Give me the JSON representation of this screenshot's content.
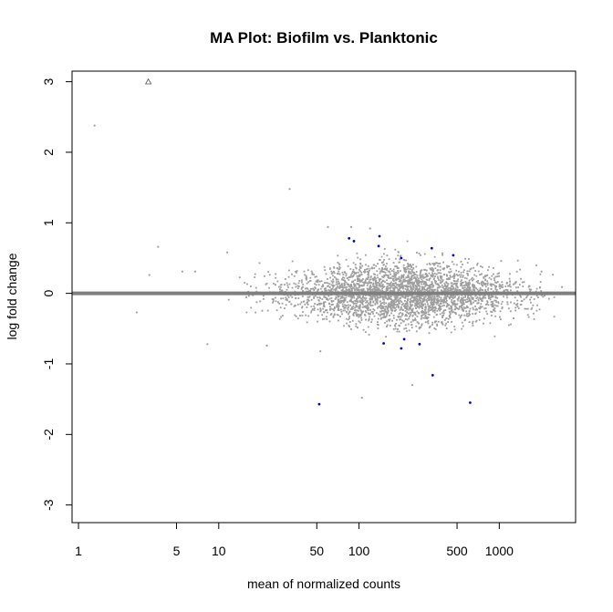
{
  "chart_data": {
    "type": "scatter",
    "title": "MA Plot: Biofilm vs. Planktonic",
    "xlabel": "mean of normalized counts",
    "ylabel": "log fold change",
    "x_scale": "log",
    "xlim": [
      0.9,
      3500
    ],
    "ylim": [
      -3.25,
      3.15
    ],
    "x_ticks": [
      {
        "value": 1,
        "label": "1"
      },
      {
        "value": 5,
        "label": "5"
      },
      {
        "value": 10,
        "label": "10"
      },
      {
        "value": 50,
        "label": "50"
      },
      {
        "value": 100,
        "label": "100"
      },
      {
        "value": 500,
        "label": "500"
      },
      {
        "value": 1000,
        "label": "1000"
      }
    ],
    "y_ticks": [
      {
        "value": -3,
        "label": "-3"
      },
      {
        "value": -2,
        "label": "-2"
      },
      {
        "value": -1,
        "label": "-1"
      },
      {
        "value": 0,
        "label": "0"
      },
      {
        "value": 1,
        "label": "1"
      },
      {
        "value": 2,
        "label": "2"
      },
      {
        "value": 3,
        "label": "3"
      }
    ],
    "reference_line": {
      "y": 0,
      "color": "#7f7f7f"
    },
    "grid": false,
    "colors": {
      "not_significant": "#9e9e9e",
      "significant": "#0000cc",
      "outlier": "#555555"
    },
    "cloud": {
      "description_center_x": 220,
      "n_points": 3200
    },
    "series": [
      {
        "group": "not_significant",
        "points": [
          {
            "x": 1.3,
            "y": 2.38
          },
          {
            "x": 2.6,
            "y": -0.27
          },
          {
            "x": 3.2,
            "y": 0.26
          },
          {
            "x": 3.7,
            "y": 0.66
          },
          {
            "x": 5.5,
            "y": 0.31
          },
          {
            "x": 6.8,
            "y": 0.31
          },
          {
            "x": 8.3,
            "y": -0.72
          },
          {
            "x": 11.5,
            "y": 0.58
          },
          {
            "x": 22,
            "y": -0.74
          },
          {
            "x": 32,
            "y": 1.48
          },
          {
            "x": 53,
            "y": -0.82
          },
          {
            "x": 105,
            "y": -1.48
          },
          {
            "x": 240,
            "y": -1.3
          },
          {
            "x": 2000,
            "y": 0.31
          },
          {
            "x": 2800,
            "y": 0.09
          },
          {
            "x": 60,
            "y": 0.94
          },
          {
            "x": 88,
            "y": 0.94
          },
          {
            "x": 120,
            "y": 0.92
          }
        ]
      },
      {
        "group": "significant",
        "points": [
          {
            "x": 85,
            "y": 0.78
          },
          {
            "x": 92,
            "y": 0.74
          },
          {
            "x": 140,
            "y": 0.81
          },
          {
            "x": 138,
            "y": 0.67
          },
          {
            "x": 200,
            "y": 0.5
          },
          {
            "x": 330,
            "y": 0.64
          },
          {
            "x": 470,
            "y": 0.54
          },
          {
            "x": 150,
            "y": -0.71
          },
          {
            "x": 200,
            "y": -0.78
          },
          {
            "x": 210,
            "y": -0.65
          },
          {
            "x": 270,
            "y": -0.72
          },
          {
            "x": 335,
            "y": -1.16
          },
          {
            "x": 52,
            "y": -1.57
          },
          {
            "x": 620,
            "y": -1.55
          }
        ]
      },
      {
        "group": "outlier",
        "points": [
          {
            "x": 3.15,
            "y": 3.0
          }
        ]
      }
    ]
  }
}
